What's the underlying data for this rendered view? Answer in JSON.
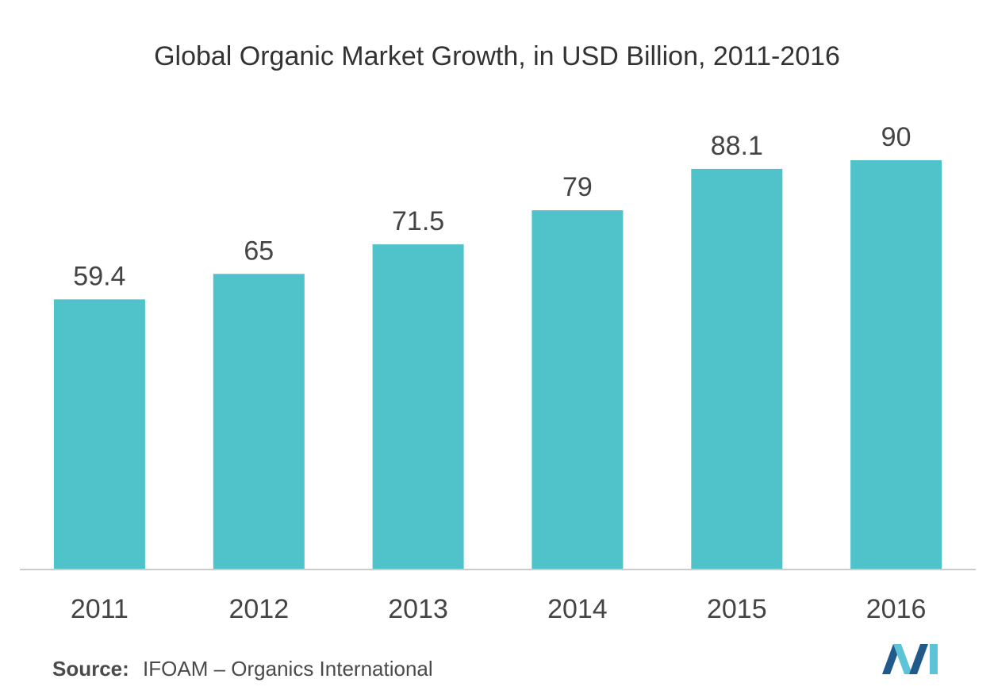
{
  "colors": {
    "bar": "#50c2c9",
    "axis": "#cccccc",
    "label": "#444444",
    "logo_dark": "#1f5a8a",
    "logo_light": "#5cc4d6"
  },
  "source": {
    "label": "Source:",
    "text": "IFOAM – Organics International"
  },
  "logo": {
    "icon": "brand-logo-icon"
  },
  "chart_data": {
    "type": "bar",
    "title": "Global Organic Market Growth, in USD Billion, 2011-2016",
    "categories": [
      "2011",
      "2012",
      "2013",
      "2014",
      "2015",
      "2016"
    ],
    "values": [
      59.4,
      65,
      71.5,
      79,
      88.1,
      90
    ],
    "value_labels": [
      "59.4",
      "65",
      "71.5",
      "79",
      "88.1",
      "90"
    ],
    "xlabel": "",
    "ylabel": "",
    "ylim": [
      0,
      90
    ],
    "grid": false,
    "legend": "none"
  }
}
